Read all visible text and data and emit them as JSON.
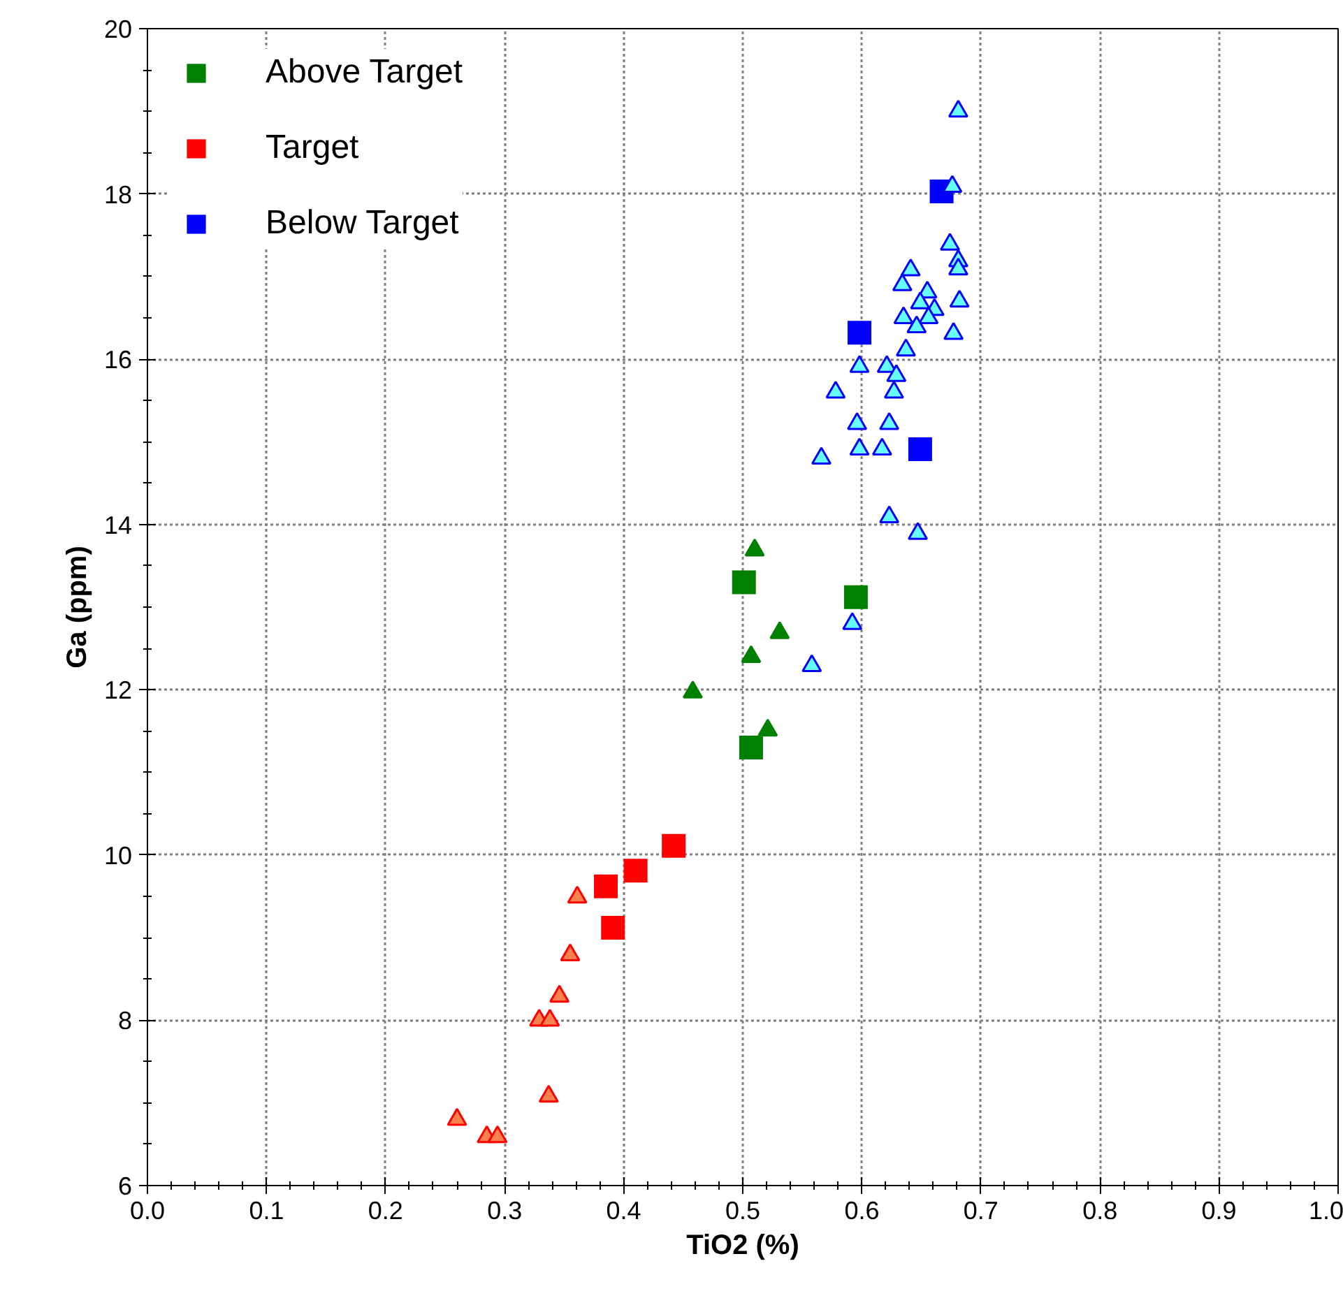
{
  "chart_data": {
    "type": "scatter",
    "xlabel": "TiO2 (%)",
    "ylabel": "Ga (ppm)",
    "xlim": [
      0.0,
      1.0
    ],
    "xticks": [
      {
        "value": 0.0,
        "label": "0.0"
      },
      {
        "value": 0.1,
        "label": "0.1"
      },
      {
        "value": 0.2,
        "label": "0.2"
      },
      {
        "value": 0.3,
        "label": "0.3"
      },
      {
        "value": 0.4,
        "label": "0.4"
      },
      {
        "value": 0.5,
        "label": "0.5"
      },
      {
        "value": 0.6,
        "label": "0.6"
      },
      {
        "value": 0.7,
        "label": "0.7"
      },
      {
        "value": 0.8,
        "label": "0.8"
      },
      {
        "value": 0.9,
        "label": "0.9"
      },
      {
        "value": 1.0,
        "label": "1.0"
      }
    ],
    "ylim": [
      6,
      20
    ],
    "yticks": [
      6,
      8,
      10,
      12,
      14,
      16,
      18,
      20
    ],
    "grid": true,
    "legend": "top left",
    "series": [
      {
        "name": "Above Target",
        "color": "#008000",
        "marker": "square",
        "x": [
          0.501,
          0.595,
          0.507
        ],
        "values": [
          13.3,
          13.12,
          11.3
        ]
      },
      {
        "color": "#008000",
        "marker": "triangle",
        "x": [
          0.51,
          0.531,
          0.507,
          0.458,
          0.521
        ],
        "values": [
          13.69,
          12.69,
          12.4,
          11.97,
          11.51
        ]
      },
      {
        "name": "Target",
        "color": "#ff0000",
        "marker": "square",
        "x": [
          0.442,
          0.41,
          0.385,
          0.391
        ],
        "values": [
          10.11,
          9.81,
          9.62,
          9.12
        ]
      },
      {
        "color": "#f9804f",
        "marker": "triangle",
        "x": [
          0.361,
          0.355,
          0.346,
          0.329,
          0.338,
          0.337,
          0.26,
          0.285,
          0.294
        ],
        "values": [
          9.49,
          8.79,
          8.29,
          8.0,
          8.0,
          7.08,
          6.8,
          6.59,
          6.59
        ]
      },
      {
        "name": "Below Target",
        "color": "#0000ff",
        "marker": "square",
        "x": [
          0.667,
          0.598,
          0.649
        ],
        "values": [
          18.03,
          16.32,
          14.91
        ]
      },
      {
        "color": "#66ffff",
        "marker": "triangle",
        "x": [
          0.681,
          0.676,
          0.674,
          0.681,
          0.681,
          0.641,
          0.634,
          0.655,
          0.649,
          0.682,
          0.661,
          0.635,
          0.656,
          0.646,
          0.677,
          0.637,
          0.598,
          0.621,
          0.629,
          0.578,
          0.627,
          0.596,
          0.623,
          0.598,
          0.617,
          0.566,
          0.623,
          0.647,
          0.592,
          0.558
        ],
        "values": [
          19.0,
          18.09,
          17.39,
          17.19,
          17.09,
          17.08,
          16.9,
          16.81,
          16.68,
          16.7,
          16.6,
          16.5,
          16.5,
          16.39,
          16.31,
          16.11,
          15.91,
          15.91,
          15.8,
          15.6,
          15.6,
          15.22,
          15.22,
          14.91,
          14.91,
          14.8,
          14.09,
          13.89,
          12.8,
          12.29
        ]
      }
    ]
  }
}
